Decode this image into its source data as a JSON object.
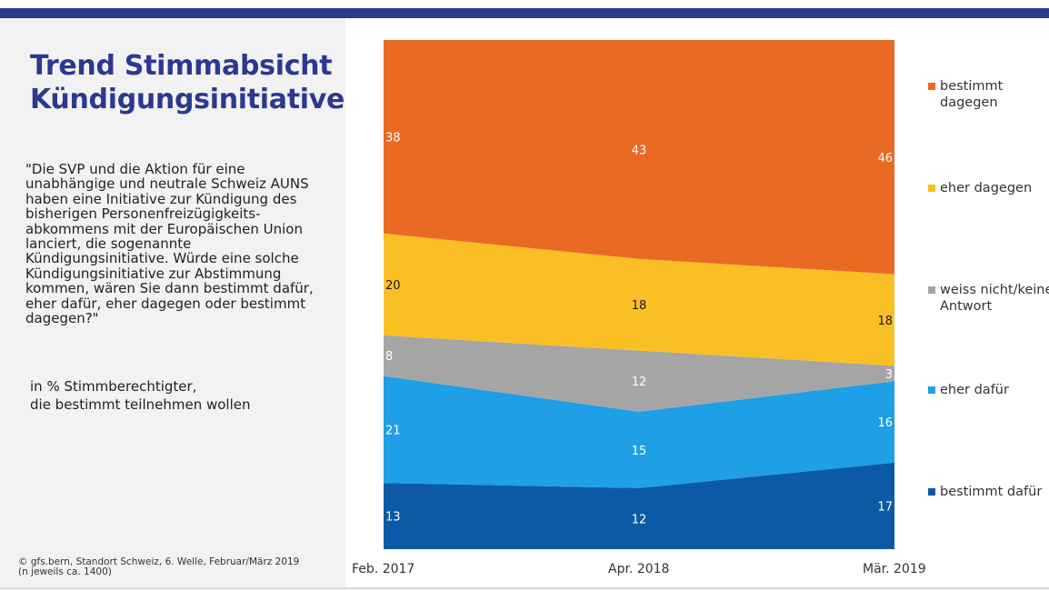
{
  "header": {
    "title_line1": "Trend Stimmabsicht",
    "title_line2": "Kündigungsinitiative"
  },
  "question": "\"Die SVP und die Aktion für eine unabhängige und neutrale Schweiz AUNS haben eine Initiative zur Kündigung des bisherigen Personenfreizügigkeits-abkommens mit der Europäischen Union lanciert, die sogenannte Kündigungsinitiative. Würde eine solche Kündigungsinitiative zur Abstimmung kommen, wären Sie dann bestimmt dafür, eher dafür, eher dagegen oder bestimmt dagegen?\"",
  "basis_line1": "in % Stimmberechtigter,",
  "basis_line2": "die bestimmt teilnehmen wollen",
  "source_line1": "© gfs.bern, Standort Schweiz, 6. Welle, Februar/März 2019",
  "source_line2": "(n jeweils ca. 1400)",
  "chart_data": {
    "type": "area",
    "stacked": true,
    "x": [
      "Feb. 2017",
      "Apr. 2018",
      "Mär. 2019"
    ],
    "ylim": [
      0,
      100
    ],
    "series": [
      {
        "name": "bestimmt dafür",
        "values": [
          13,
          12,
          17
        ],
        "color": "#0c5aa6",
        "label_color": "#ffffff"
      },
      {
        "name": "eher dafür",
        "values": [
          21,
          15,
          16
        ],
        "color": "#1f9fe6",
        "label_color": "#ffffff"
      },
      {
        "name": "weiss nicht/keine Antwort",
        "values": [
          8,
          12,
          3
        ],
        "color": "#a5a5a5",
        "label_color": "#ffffff"
      },
      {
        "name": "eher dagegen",
        "values": [
          20,
          18,
          18
        ],
        "color": "#fbbf26",
        "label_color": "#1a1a1a"
      },
      {
        "name": "bestimmt dagegen",
        "values": [
          38,
          43,
          46
        ],
        "color": "#ea6a23",
        "label_color": "#ffffff"
      }
    ],
    "legend_order": [
      "bestimmt dagegen",
      "eher dagegen",
      "weiss nicht/keine Antwort",
      "eher dafür",
      "bestimmt dafür"
    ],
    "legend_placement": "right",
    "grid": false
  }
}
